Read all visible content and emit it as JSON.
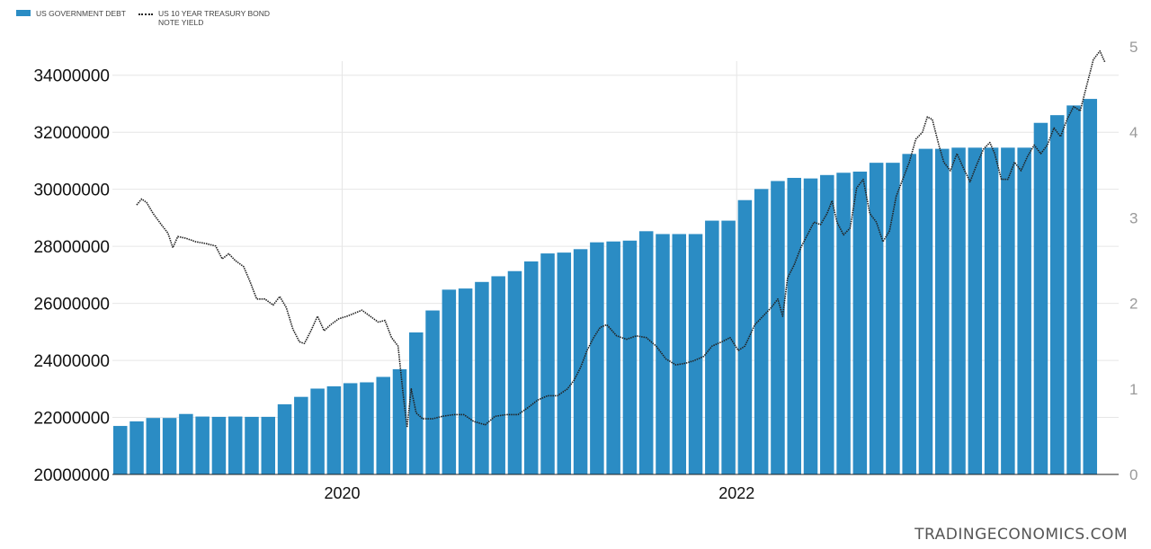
{
  "legend": {
    "debt_label": "US GOVERNMENT DEBT",
    "yield_label_line1": "US 10 YEAR TREASURY BOND",
    "yield_label_line2": "NOTE YIELD"
  },
  "watermark": "TRADINGECONOMICS.COM",
  "colors": {
    "bar": "#2b8cc4",
    "line": "#222222",
    "grid": "#e6e6e6",
    "axis_text": "#111111",
    "right_axis_text": "#9a9a9a"
  },
  "chart_data": {
    "type": "bar",
    "title": "",
    "x_tick_labels": [
      "2020",
      "2022"
    ],
    "x_tick_months": [
      13.5,
      37.5
    ],
    "left_axis": {
      "ticks": [
        "20000000",
        "22000000",
        "24000000",
        "26000000",
        "28000000",
        "30000000",
        "32000000",
        "34000000"
      ],
      "ylim": [
        20000000,
        35000000
      ]
    },
    "right_axis": {
      "ticks": [
        "0",
        "1",
        "2",
        "3",
        "4",
        "5"
      ],
      "ylim": [
        0,
        5
      ]
    },
    "series": [
      {
        "name": "US GOVERNMENT DEBT",
        "type": "bar",
        "x_unit": "month index, 0 = first bar",
        "values": [
          21700000,
          21860000,
          21980000,
          21980000,
          22120000,
          22030000,
          22020000,
          22030000,
          22020000,
          22020000,
          22460000,
          22720000,
          23010000,
          23090000,
          23200000,
          23230000,
          23420000,
          23690000,
          24980000,
          25750000,
          26480000,
          26520000,
          26750000,
          26950000,
          27130000,
          27470000,
          27750000,
          27780000,
          27900000,
          28140000,
          28170000,
          28200000,
          28530000,
          28430000,
          28430000,
          28430000,
          28900000,
          28900000,
          29620000,
          30010000,
          30290000,
          30400000,
          30380000,
          30500000,
          30580000,
          30620000,
          30930000,
          30930000,
          31240000,
          31420000,
          31420000,
          31460000,
          31460000,
          31460000,
          31460000,
          31460000,
          32330000,
          32600000,
          32940000,
          33170000
        ]
      },
      {
        "name": "US 10 YEAR TREASURY BOND NOTE YIELD",
        "type": "line",
        "axis": "right",
        "x_unit": "month index",
        "points": [
          [
            1.0,
            3.15
          ],
          [
            1.3,
            3.22
          ],
          [
            1.6,
            3.18
          ],
          [
            2.0,
            3.05
          ],
          [
            2.5,
            2.92
          ],
          [
            2.9,
            2.82
          ],
          [
            3.2,
            2.65
          ],
          [
            3.5,
            2.78
          ],
          [
            4.0,
            2.76
          ],
          [
            4.6,
            2.72
          ],
          [
            5.2,
            2.7
          ],
          [
            5.8,
            2.67
          ],
          [
            6.2,
            2.52
          ],
          [
            6.6,
            2.58
          ],
          [
            7.0,
            2.5
          ],
          [
            7.5,
            2.43
          ],
          [
            7.9,
            2.25
          ],
          [
            8.3,
            2.05
          ],
          [
            8.8,
            2.05
          ],
          [
            9.3,
            1.98
          ],
          [
            9.7,
            2.08
          ],
          [
            10.1,
            1.95
          ],
          [
            10.5,
            1.7
          ],
          [
            10.9,
            1.55
          ],
          [
            11.2,
            1.53
          ],
          [
            11.6,
            1.68
          ],
          [
            12.0,
            1.85
          ],
          [
            12.4,
            1.68
          ],
          [
            12.8,
            1.75
          ],
          [
            13.3,
            1.82
          ],
          [
            13.8,
            1.85
          ],
          [
            14.2,
            1.88
          ],
          [
            14.7,
            1.92
          ],
          [
            15.2,
            1.85
          ],
          [
            15.7,
            1.78
          ],
          [
            16.1,
            1.8
          ],
          [
            16.5,
            1.6
          ],
          [
            16.9,
            1.5
          ],
          [
            17.2,
            0.95
          ],
          [
            17.45,
            0.55
          ],
          [
            17.7,
            1.0
          ],
          [
            18.0,
            0.72
          ],
          [
            18.4,
            0.65
          ],
          [
            19.0,
            0.65
          ],
          [
            19.6,
            0.68
          ],
          [
            20.3,
            0.7
          ],
          [
            20.9,
            0.7
          ],
          [
            21.5,
            0.62
          ],
          [
            22.2,
            0.58
          ],
          [
            22.8,
            0.68
          ],
          [
            23.5,
            0.7
          ],
          [
            24.2,
            0.7
          ],
          [
            24.8,
            0.78
          ],
          [
            25.4,
            0.87
          ],
          [
            26.0,
            0.92
          ],
          [
            26.6,
            0.92
          ],
          [
            27.2,
            1.0
          ],
          [
            27.6,
            1.1
          ],
          [
            28.0,
            1.25
          ],
          [
            28.4,
            1.45
          ],
          [
            28.8,
            1.6
          ],
          [
            29.2,
            1.72
          ],
          [
            29.6,
            1.75
          ],
          [
            30.2,
            1.62
          ],
          [
            30.8,
            1.58
          ],
          [
            31.4,
            1.62
          ],
          [
            32.0,
            1.6
          ],
          [
            32.6,
            1.5
          ],
          [
            33.2,
            1.35
          ],
          [
            33.8,
            1.28
          ],
          [
            34.4,
            1.3
          ],
          [
            34.9,
            1.33
          ],
          [
            35.5,
            1.38
          ],
          [
            36.0,
            1.5
          ],
          [
            36.6,
            1.55
          ],
          [
            37.1,
            1.6
          ],
          [
            37.6,
            1.45
          ],
          [
            38.0,
            1.5
          ],
          [
            38.6,
            1.75
          ],
          [
            39.1,
            1.85
          ],
          [
            39.6,
            1.95
          ],
          [
            40.0,
            2.05
          ],
          [
            40.3,
            1.85
          ],
          [
            40.6,
            2.3
          ],
          [
            41.0,
            2.45
          ],
          [
            41.4,
            2.65
          ],
          [
            41.8,
            2.8
          ],
          [
            42.2,
            2.95
          ],
          [
            42.6,
            2.92
          ],
          [
            43.0,
            3.05
          ],
          [
            43.3,
            3.2
          ],
          [
            43.6,
            2.95
          ],
          [
            44.0,
            2.8
          ],
          [
            44.4,
            2.88
          ],
          [
            44.8,
            3.35
          ],
          [
            45.2,
            3.45
          ],
          [
            45.6,
            3.05
          ],
          [
            46.0,
            2.95
          ],
          [
            46.4,
            2.72
          ],
          [
            46.8,
            2.85
          ],
          [
            47.2,
            3.25
          ],
          [
            47.6,
            3.45
          ],
          [
            48.0,
            3.65
          ],
          [
            48.4,
            3.92
          ],
          [
            48.8,
            4.0
          ],
          [
            49.1,
            4.18
          ],
          [
            49.4,
            4.15
          ],
          [
            49.8,
            3.85
          ],
          [
            50.1,
            3.65
          ],
          [
            50.5,
            3.55
          ],
          [
            50.9,
            3.75
          ],
          [
            51.3,
            3.58
          ],
          [
            51.7,
            3.42
          ],
          [
            52.1,
            3.62
          ],
          [
            52.5,
            3.8
          ],
          [
            52.9,
            3.88
          ],
          [
            53.2,
            3.75
          ],
          [
            53.6,
            3.45
          ],
          [
            54.0,
            3.45
          ],
          [
            54.4,
            3.65
          ],
          [
            54.8,
            3.55
          ],
          [
            55.2,
            3.72
          ],
          [
            55.6,
            3.85
          ],
          [
            56.0,
            3.75
          ],
          [
            56.4,
            3.85
          ],
          [
            56.8,
            4.05
          ],
          [
            57.2,
            3.95
          ],
          [
            57.6,
            4.15
          ],
          [
            58.0,
            4.3
          ],
          [
            58.4,
            4.25
          ],
          [
            58.8,
            4.55
          ],
          [
            59.2,
            4.85
          ],
          [
            59.6,
            4.95
          ],
          [
            59.9,
            4.82
          ]
        ]
      }
    ],
    "grid": true
  }
}
